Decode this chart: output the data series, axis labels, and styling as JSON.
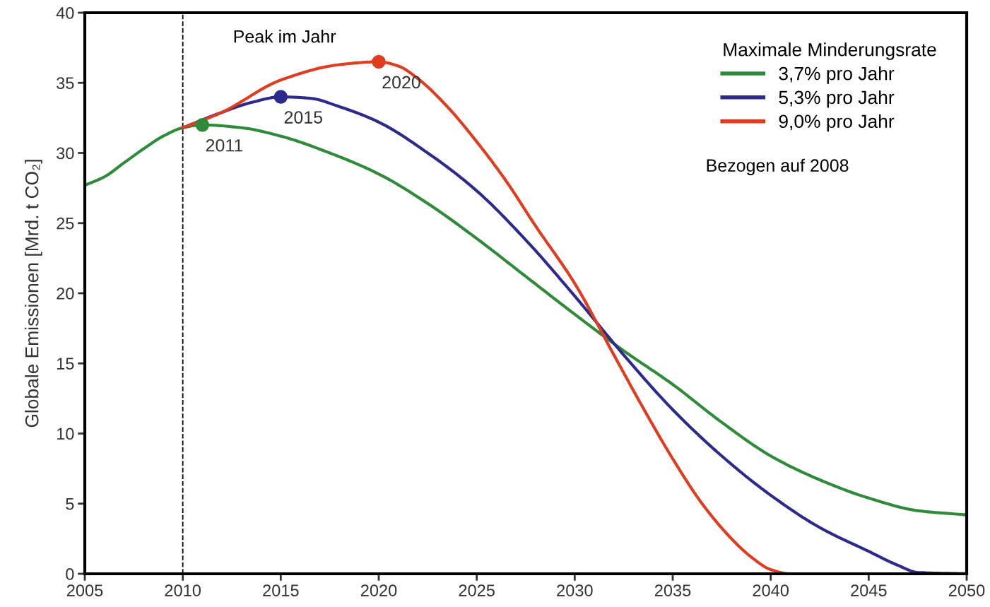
{
  "chart_data": {
    "type": "line",
    "ylabel": "Globale Emissionen [Mrd. t CO₂]",
    "legend_title": "Maximale Minderungsrate",
    "xlim": [
      2005,
      2050
    ],
    "xticks": [
      2005,
      2010,
      2015,
      2020,
      2025,
      2030,
      2035,
      2040,
      2045,
      2050
    ],
    "ylim": [
      0,
      40
    ],
    "yticks": [
      0,
      5,
      10,
      15,
      20,
      25,
      30,
      35,
      40
    ],
    "grid": false,
    "legend": "top right",
    "marker": "none",
    "line_style": "solid",
    "series": [
      {
        "name": "3,7% pro Jahr",
        "color": "#2e8b3a",
        "x": [
          2005,
          2006,
          2007,
          2008,
          2009,
          2010,
          2011,
          2013,
          2015,
          2017.5,
          2020,
          2022.5,
          2025,
          2027.5,
          2030,
          2032.5,
          2035,
          2037.5,
          2040,
          2042.5,
          2045,
          2047.5,
          2050
        ],
        "values": [
          27.7,
          28.3,
          29.3,
          30.3,
          31.2,
          31.8,
          32.0,
          31.8,
          31.2,
          30.0,
          28.5,
          26.4,
          23.9,
          21.2,
          18.5,
          15.9,
          13.5,
          10.8,
          8.4,
          6.7,
          5.4,
          4.5,
          4.2
        ]
      },
      {
        "name": "5,3% pro Jahr",
        "color": "#2e2a8c",
        "x": [
          2010,
          2012,
          2013.5,
          2015,
          2016.5,
          2018,
          2020,
          2022.5,
          2025,
          2027.5,
          2030,
          2032.5,
          2035,
          2037.5,
          2040,
          2042.5,
          2045,
          2046.5,
          2047.5,
          2050
        ],
        "values": [
          31.8,
          32.9,
          33.6,
          34.0,
          33.9,
          33.3,
          32.2,
          30.0,
          27.3,
          23.8,
          19.8,
          15.6,
          11.7,
          8.4,
          5.6,
          3.3,
          1.6,
          0.6,
          0.1,
          0
        ]
      },
      {
        "name": "9,0% pro Jahr",
        "color": "#e03c1f",
        "x": [
          2010,
          2012,
          2015,
          2018,
          2020,
          2021,
          2022,
          2023.5,
          2025,
          2026.5,
          2028,
          2030,
          2032,
          2033.5,
          2035,
          2036.5,
          2038,
          2039,
          2040,
          2041,
          2050
        ],
        "values": [
          31.8,
          32.9,
          35.2,
          36.3,
          36.5,
          36.2,
          35.3,
          33.3,
          30.8,
          28.0,
          24.8,
          20.7,
          15.6,
          11.8,
          8.2,
          5.0,
          2.5,
          1.2,
          0.3,
          0,
          0
        ]
      },
      {
        "type": "scatter",
        "marker": "circle",
        "color": "#2e8b3a",
        "x": [
          2011
        ],
        "values": [
          32.0
        ]
      },
      {
        "type": "scatter",
        "marker": "circle",
        "color": "#2e2a8c",
        "x": [
          2015
        ],
        "values": [
          34.0
        ]
      },
      {
        "type": "scatter",
        "marker": "circle",
        "color": "#e03c1f",
        "x": [
          2020
        ],
        "values": [
          36.5
        ]
      }
    ],
    "ref_lines": [
      {
        "axis": "x",
        "value": 2010,
        "color": "#000000",
        "line_style": "dashed"
      }
    ],
    "annotations": [
      {
        "text": "2011",
        "x": 2011,
        "y": 32.0
      },
      {
        "text": "2015",
        "x": 2015,
        "y": 34.0
      },
      {
        "text": "2020",
        "x": 2020,
        "y": 36.5
      },
      "Peak im Jahr",
      "Bezogen auf 2008"
    ]
  }
}
